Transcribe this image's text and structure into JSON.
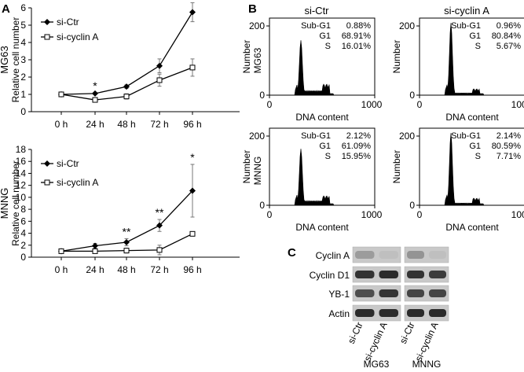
{
  "panel_labels": {
    "a": "A",
    "b": "B",
    "c": "C"
  },
  "chart_data": [
    {
      "type": "line",
      "cell_line": "MG63",
      "ylabel": "Relative cell number",
      "categories": [
        "0 h",
        "24 h",
        "48 h",
        "72 h",
        "96 h"
      ],
      "ylim": [
        0,
        6
      ],
      "yticks": [
        "0",
        "1",
        "2",
        "3",
        "4",
        "5",
        "6"
      ],
      "series": [
        {
          "name": "si-Ctr",
          "marker": "filled-diamond",
          "values": [
            1.0,
            1.05,
            1.45,
            2.65,
            5.75
          ],
          "errors": [
            0,
            0.05,
            0.1,
            0.4,
            0.55
          ]
        },
        {
          "name": "si-cyclin A",
          "marker": "open-square",
          "values": [
            1.0,
            0.68,
            0.88,
            1.82,
            2.55
          ],
          "errors": [
            0,
            0.05,
            0.15,
            0.35,
            0.5
          ]
        }
      ],
      "significance": [
        {
          "category": "24 h",
          "label": "*"
        },
        {
          "category": "96 h",
          "label": "*"
        }
      ]
    },
    {
      "type": "line",
      "cell_line": "MNNG",
      "ylabel": "Relative cell number",
      "categories": [
        "0 h",
        "24 h",
        "48 h",
        "72 h",
        "96 h"
      ],
      "ylim": [
        0,
        18
      ],
      "yticks": [
        "0",
        "2",
        "4",
        "6",
        "8",
        "10",
        "12",
        "14",
        "16",
        "18"
      ],
      "series": [
        {
          "name": "si-Ctr",
          "marker": "filled-diamond",
          "values": [
            1.0,
            1.9,
            2.5,
            5.3,
            11.1
          ],
          "errors": [
            0,
            0.4,
            0.6,
            1.0,
            4.4
          ]
        },
        {
          "name": "si-cyclin A",
          "marker": "open-square",
          "values": [
            1.0,
            1.0,
            1.1,
            1.2,
            3.9
          ],
          "errors": [
            0,
            0.1,
            0.4,
            0.8,
            0.1
          ]
        }
      ],
      "significance": [
        {
          "category": "48 h",
          "label": "**"
        },
        {
          "category": "72 h",
          "label": "**"
        },
        {
          "category": "96 h",
          "label": "*"
        }
      ]
    }
  ],
  "flow": {
    "conditions": [
      "si-Ctr",
      "si-cyclin A"
    ],
    "xlabel": "DNA content",
    "ylabel": "Number",
    "xticks": [
      "0",
      "1000"
    ],
    "yticks": [
      "0",
      "200"
    ],
    "phase_labels": [
      "Sub-G1",
      "G1",
      "S"
    ],
    "panels": [
      {
        "row": "MG63",
        "condition": "si-Ctr",
        "values": [
          "0.88%",
          "68.91%",
          "16.01%"
        ]
      },
      {
        "row": "MG63",
        "condition": "si-cyclin A",
        "values": [
          "0.96%",
          "80.84%",
          "5.67%"
        ]
      },
      {
        "row": "MNNG",
        "condition": "si-Ctr",
        "values": [
          "2.12%",
          "61.09%",
          "15.95%"
        ]
      },
      {
        "row": "MNNG",
        "condition": "si-cyclin A",
        "values": [
          "2.14%",
          "80.59%",
          "7.71%"
        ]
      }
    ]
  },
  "blot": {
    "proteins": [
      "Cyclin A",
      "Cyclin D1",
      "YB-1",
      "Actin"
    ],
    "lanes": [
      "si-Ctr",
      "si-cyclin A"
    ],
    "cell_lines": [
      "MG63",
      "MNNG"
    ],
    "band_intensity": [
      [
        0.25,
        0.05,
        0.3,
        0.05
      ],
      [
        0.85,
        0.9,
        0.85,
        0.8
      ],
      [
        0.7,
        0.85,
        0.75,
        0.75
      ],
      [
        0.9,
        0.9,
        0.9,
        0.9
      ]
    ]
  }
}
